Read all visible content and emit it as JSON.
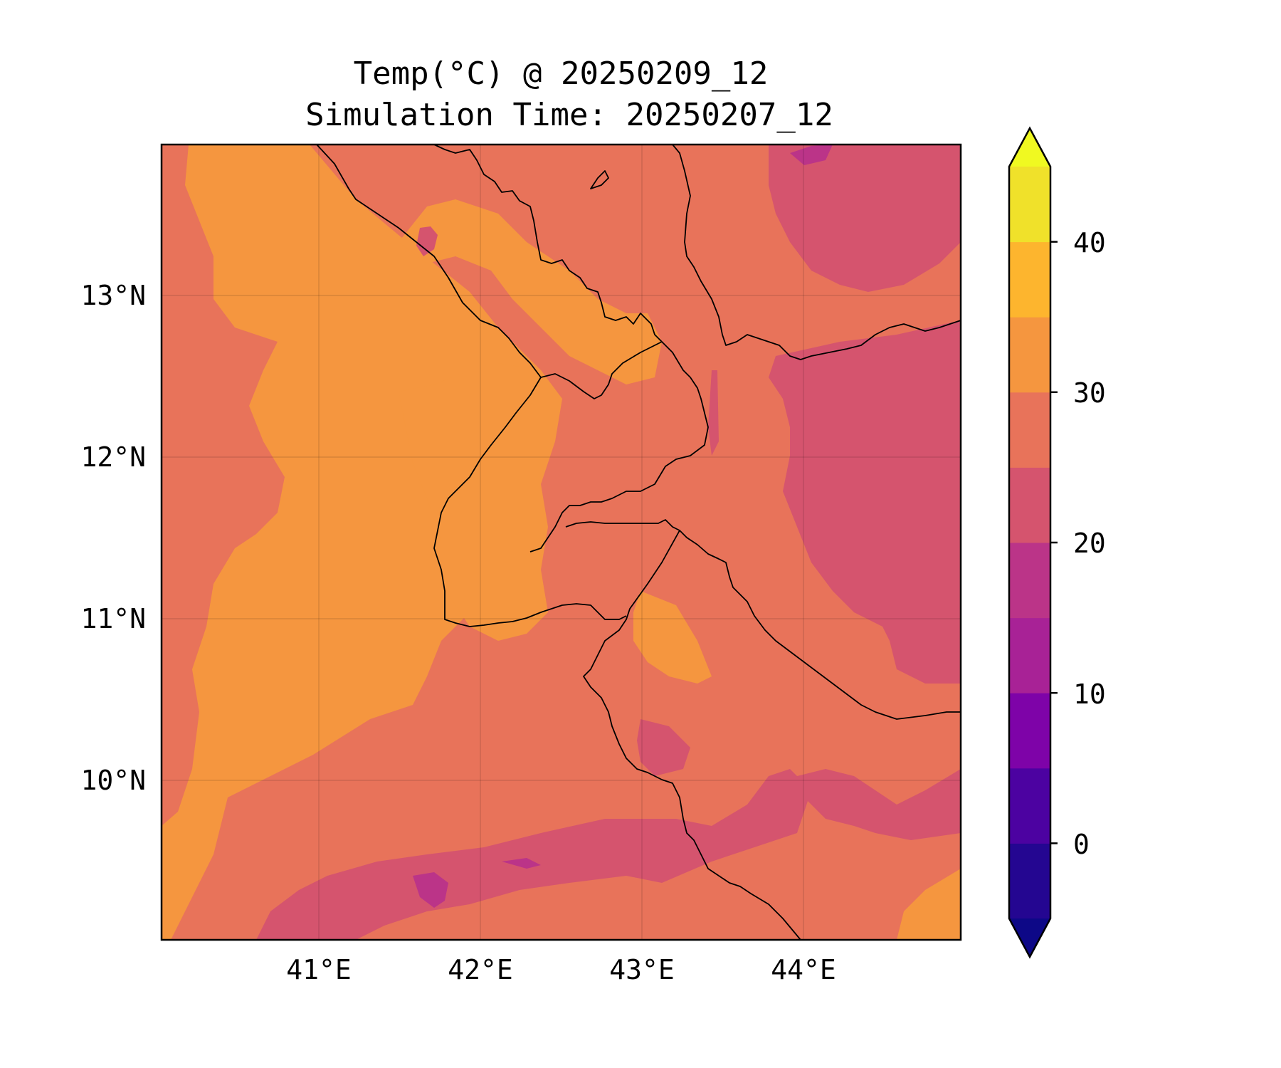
{
  "title": {
    "line1": "Temp(°C) @ 20250209_12",
    "line2": "Simulation Time: 20250207_12"
  },
  "map": {
    "lon_range": [
      40.0,
      45.0
    ],
    "lat_range": [
      9.0,
      13.9
    ],
    "x_ticks": [
      "41°E",
      "42°E",
      "43°E",
      "44°E"
    ],
    "y_ticks": [
      "13°N",
      "12°N",
      "11°N",
      "10°N"
    ],
    "gridlines": true,
    "coastlines_and_borders": true,
    "fill_colors": {
      "band_25_30": "#e8735a",
      "band_30_35": "#f5963f",
      "band_20_25": "#d5546e",
      "band_15_20": "#bb3488",
      "background_sea_band": "#e8735a"
    }
  },
  "colorbar": {
    "levels": [
      -5,
      0,
      5,
      10,
      15,
      20,
      25,
      30,
      35,
      40,
      45
    ],
    "ticks": [
      "40",
      "30",
      "20",
      "10",
      "0"
    ],
    "extend": "both",
    "colors": [
      "#240691",
      "#4c02a1",
      "#7e03a8",
      "#a82296",
      "#bb3488",
      "#d5546e",
      "#e8735a",
      "#f5963f",
      "#fdb52e",
      "#f0e12a"
    ],
    "under_color": "#0d0887",
    "over_color": "#f0f921"
  }
}
